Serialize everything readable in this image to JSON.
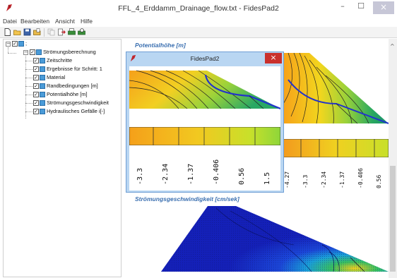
{
  "window": {
    "title": "FFL_4_Erddamm_Drainage_flow.txt - FidesPad2",
    "app_icon": "red-quill-icon",
    "min_label": "–",
    "max_label": "☐",
    "close_label": "×"
  },
  "menu": {
    "items": [
      "Datei",
      "Bearbeiten",
      "Ansicht",
      "Hilfe"
    ]
  },
  "toolbar": {
    "icons": [
      "new-file-icon",
      "open-folder-icon",
      "save-icon",
      "open-file-icon",
      "copy-icon",
      "export-icon",
      "print-icon",
      "print-preview-icon"
    ]
  },
  "tree": {
    "root_label": ";",
    "group_label": "Strömungsberechnung",
    "items": [
      "Zeitschritte",
      "Ergebnisse für Schritt: 1",
      "Material",
      "Randbedingungen [m]",
      "Potentialhöhe [m]",
      "Strömungsgeschwindigkeit",
      "Hydraulisches Gefälle i[-]"
    ]
  },
  "content": {
    "potential_title": "Potentialhöhe [m]",
    "velocity_title": "Strömungsgeschwindigkeit [cm/sek]",
    "legend_ticks": [
      "-4.27",
      "-3.3",
      "-2.34",
      "-1.37",
      "-0.406",
      "0.56"
    ]
  },
  "popup": {
    "title": "FidesPad2",
    "close_label": "×",
    "legend_ticks": [
      "-3.3",
      "-2.34",
      "-1.37",
      "-0.406",
      "0.56",
      "1.5"
    ]
  },
  "colors": {
    "accent_blue": "#3a6fb0",
    "close_red": "#c9302c",
    "popup_frame": "#b9d6f2"
  }
}
